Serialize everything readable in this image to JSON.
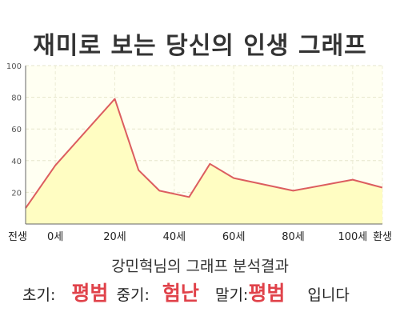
{
  "title": "재미로 보는 당신의 인생 그래프",
  "subtitle": "강민혁님의 그래프 분석결과",
  "summary": {
    "early_label": "초기:",
    "early_value": "평범",
    "mid_label": "중기:",
    "mid_value": "험난",
    "late_label": "말기:",
    "late_value": "평범",
    "ending": "입니다"
  },
  "colors": {
    "line": "#dc5d5f",
    "fill": "#fffdc2",
    "plot_bg": "#fffff2",
    "accent_text": "#e0424a"
  },
  "chart_data": {
    "type": "area",
    "title": "재미로 보는 당신의 인생 그래프",
    "xlabel": "",
    "ylabel": "",
    "xlim": [
      -10,
      110
    ],
    "ylim": [
      0,
      100
    ],
    "grid": true,
    "x_ticks": [
      {
        "value": -10,
        "label": "전생"
      },
      {
        "value": 0,
        "label": "0세"
      },
      {
        "value": 20,
        "label": "20세"
      },
      {
        "value": 40,
        "label": "40세"
      },
      {
        "value": 60,
        "label": "60세"
      },
      {
        "value": 80,
        "label": "80세"
      },
      {
        "value": 100,
        "label": "100세"
      },
      {
        "value": 110,
        "label": "환생"
      }
    ],
    "y_ticks": [
      20,
      40,
      60,
      80,
      100
    ],
    "series": [
      {
        "x": [
          -10,
          0,
          20,
          28,
          35,
          45,
          52,
          60,
          80,
          100,
          110
        ],
        "values": [
          10,
          37,
          79,
          34,
          21,
          17,
          38,
          29,
          21,
          28,
          23
        ]
      }
    ]
  }
}
